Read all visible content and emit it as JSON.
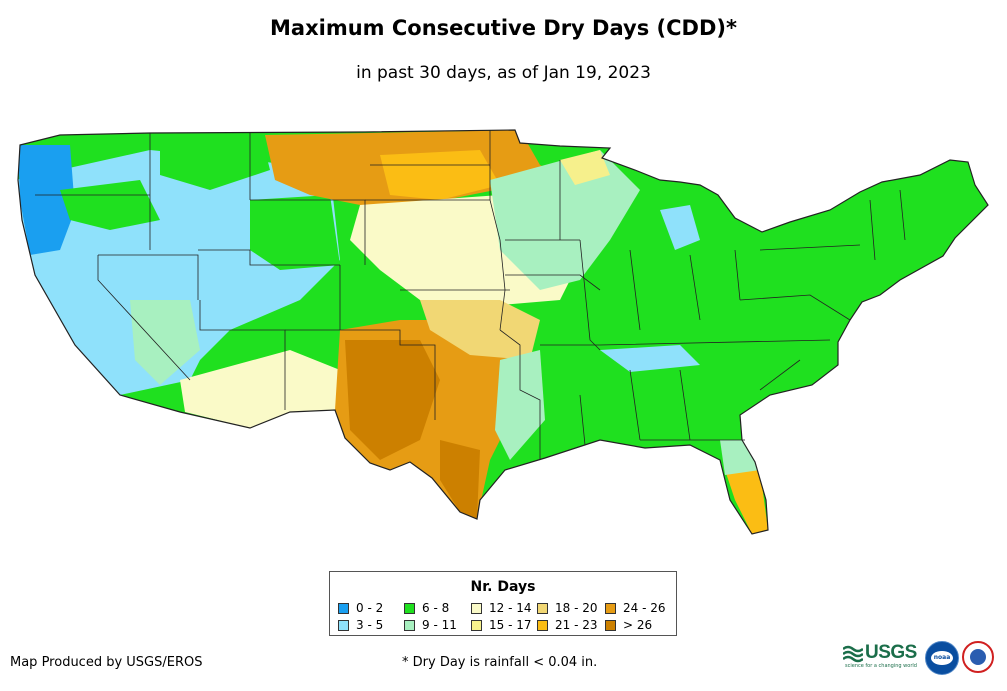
{
  "title": "Maximum Consecutive Dry Days (CDD)*",
  "subtitle": "in past 30 days, as of Jan 19, 2023",
  "legend": {
    "title": "Nr. Days",
    "items": [
      {
        "label": "0 - 2",
        "color": "#1a9ff0"
      },
      {
        "label": "3 - 5",
        "color": "#8fe1fb"
      },
      {
        "label": "6 - 8",
        "color": "#1fe01f"
      },
      {
        "label": "9 - 11",
        "color": "#a8f0c0"
      },
      {
        "label": "12 - 14",
        "color": "#fafac8"
      },
      {
        "label": "15 - 17",
        "color": "#f6f08c"
      },
      {
        "label": "18 - 20",
        "color": "#f1d774"
      },
      {
        "label": "21 - 23",
        "color": "#fbbd14"
      },
      {
        "label": "24 - 26",
        "color": "#e69c14"
      },
      {
        "label": "> 26",
        "color": "#cc8000"
      }
    ]
  },
  "credit": "Map Produced by USGS/EROS",
  "footnote": "* Dry Day is rainfall < 0.04 in.",
  "logos": {
    "usgs": "USGS",
    "usgs_tagline": "science for a changing world",
    "noaa": "noaa"
  }
}
